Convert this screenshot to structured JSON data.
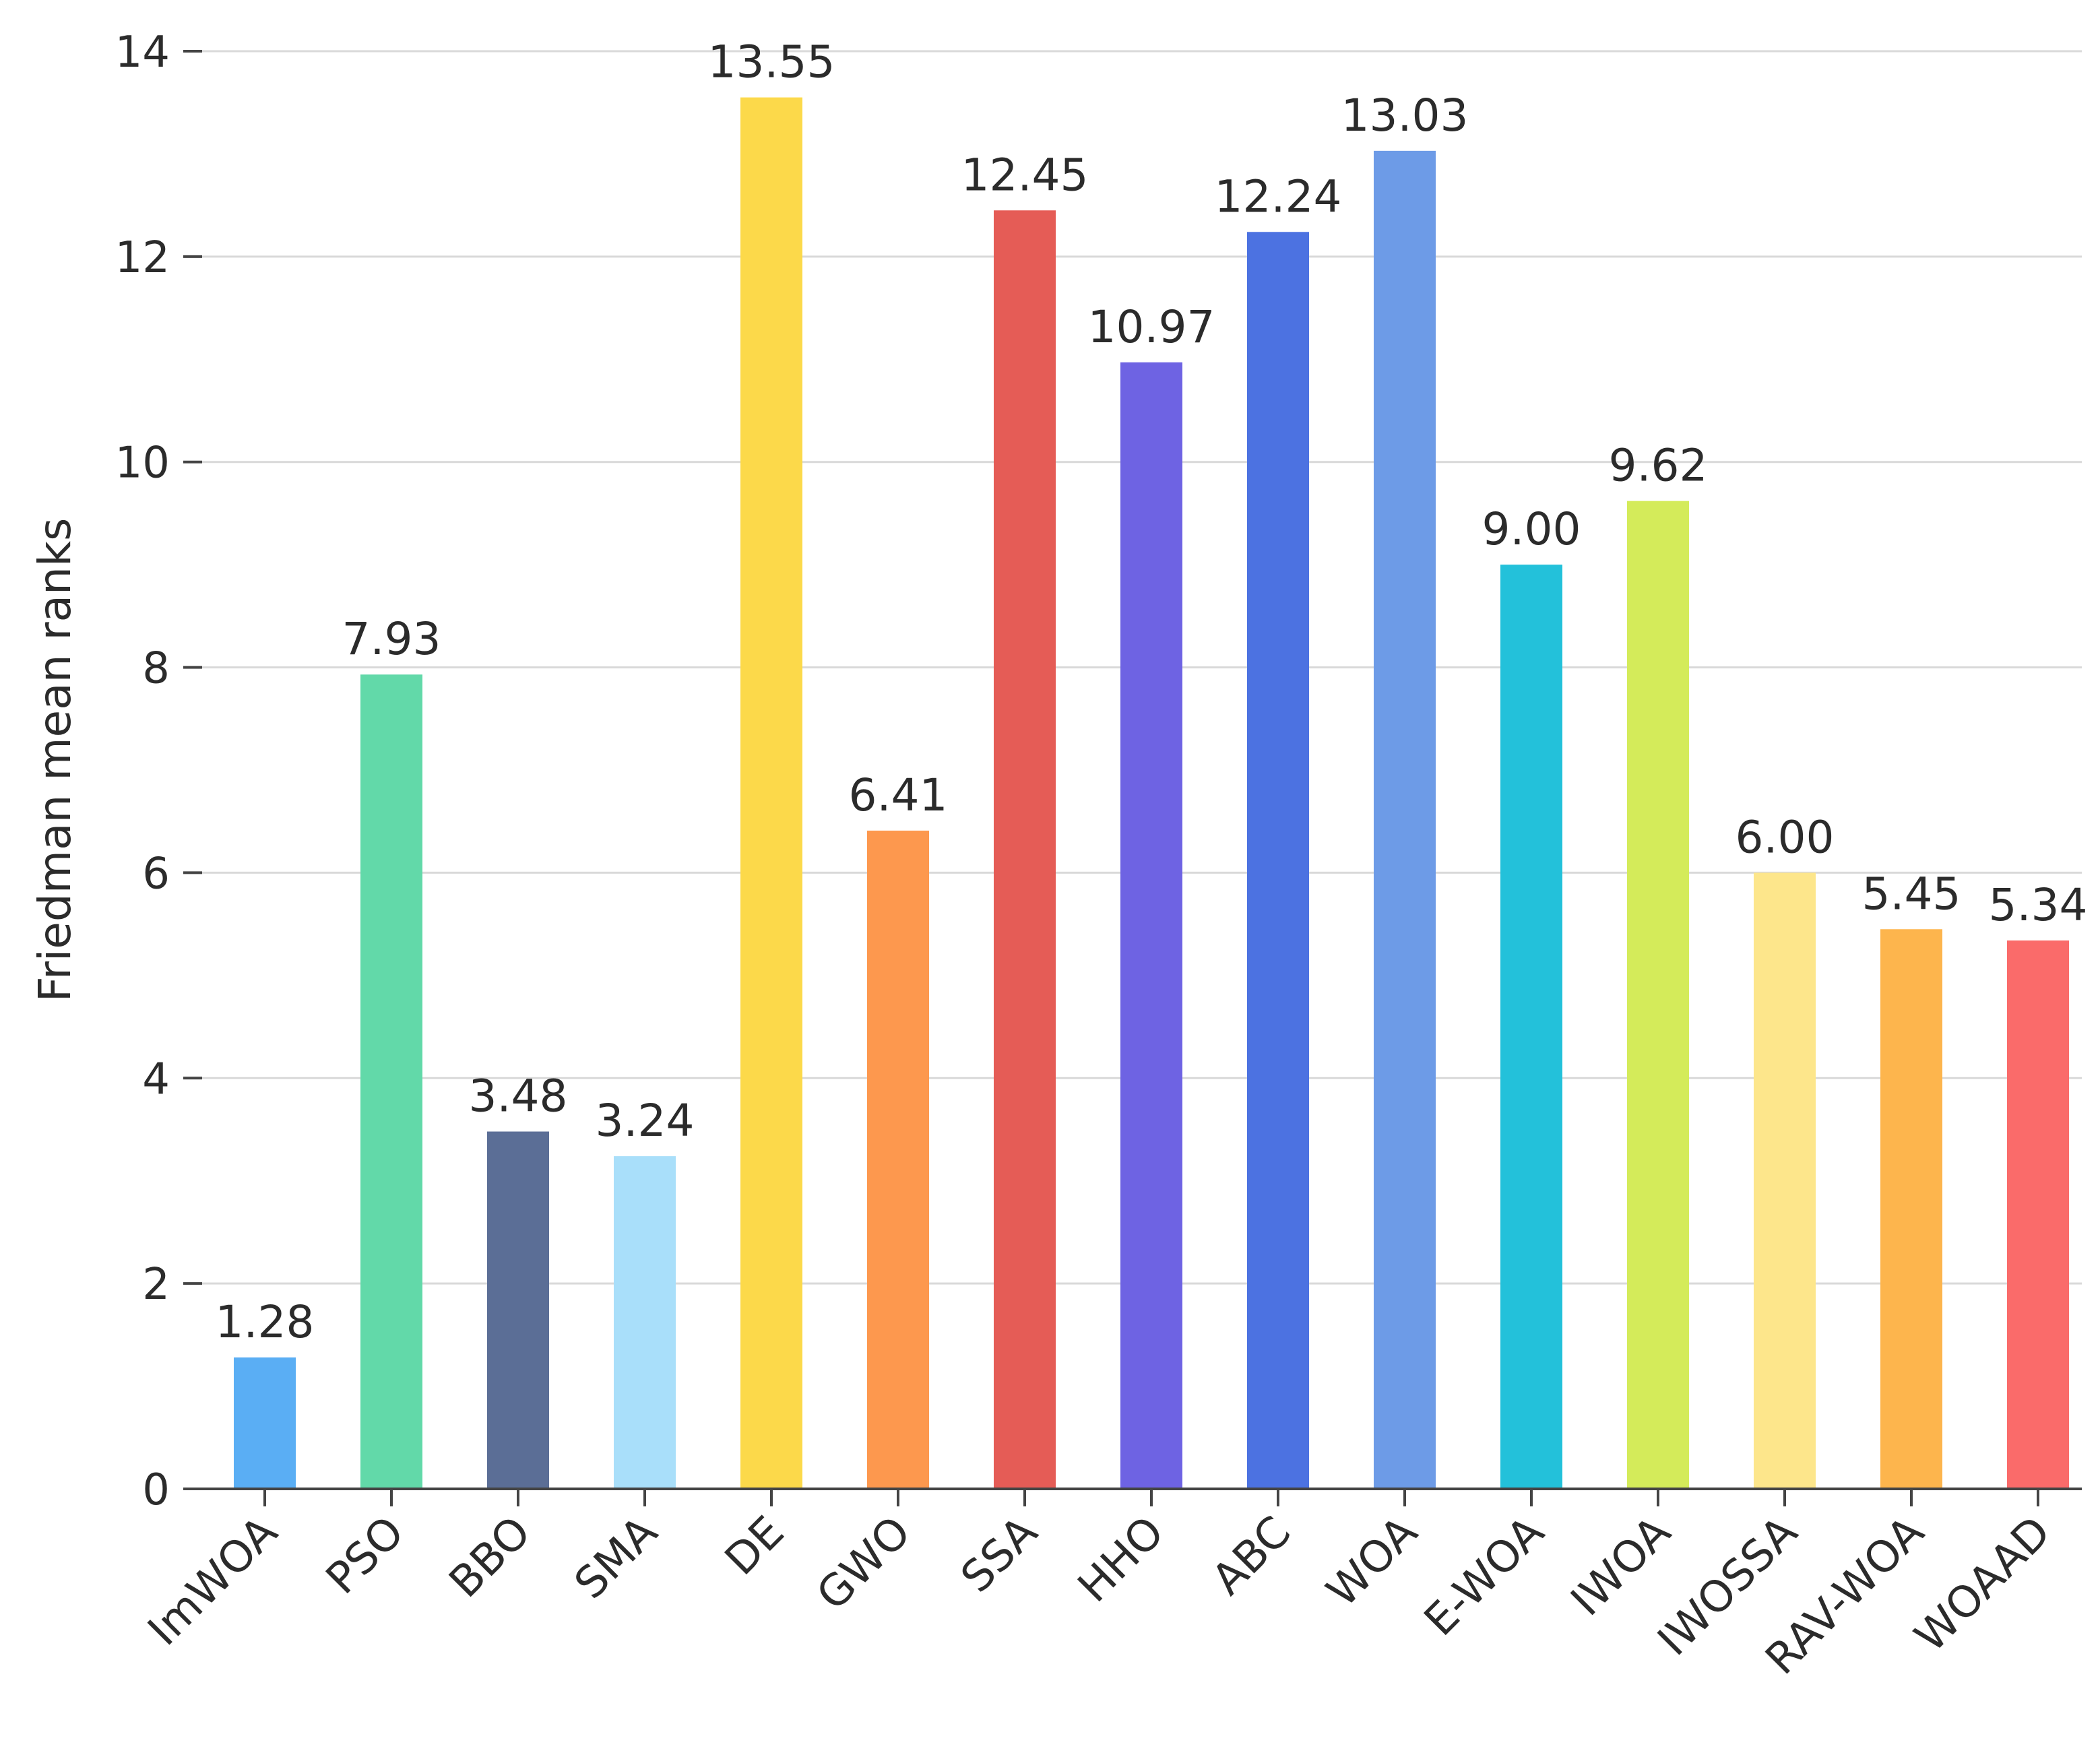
{
  "chart_data": {
    "type": "bar",
    "title": "",
    "xlabel": "",
    "ylabel": "Friedman mean ranks",
    "ylim": [
      0,
      14
    ],
    "yticks": [
      0,
      2,
      4,
      6,
      8,
      10,
      12,
      14
    ],
    "ytick_labels": [
      "0",
      "2",
      "4",
      "6",
      "8",
      "10",
      "12",
      "14"
    ],
    "grid": "horizontal",
    "categories": [
      "ImWOA",
      "PSO",
      "BBO",
      "SMA",
      "DE",
      "GWO",
      "SSA",
      "HHO",
      "ABC",
      "WOA",
      "E-WOA",
      "IWOA",
      "IWOSSA",
      "RAV-WOA",
      "WOAAD"
    ],
    "values": [
      1.28,
      7.93,
      3.48,
      3.24,
      13.55,
      6.41,
      12.45,
      10.97,
      12.24,
      13.03,
      9.0,
      9.62,
      6.0,
      5.45,
      5.34
    ],
    "value_labels": [
      "1.28",
      "7.93",
      "3.48",
      "3.24",
      "13.55",
      "6.41",
      "12.45",
      "10.97",
      "12.24",
      "13.03",
      "9.00",
      "9.62",
      "6.00",
      "5.45",
      "5.34"
    ],
    "colors": [
      "#5aaef4",
      "#62d9a9",
      "#5b6e96",
      "#a9dffa",
      "#fcd94a",
      "#fd984e",
      "#e55c56",
      "#6e63e3",
      "#4c72e1",
      "#6d9be7",
      "#23c1da",
      "#d4eb5a",
      "#fde68b",
      "#fdb54d",
      "#fa6b6a"
    ]
  }
}
